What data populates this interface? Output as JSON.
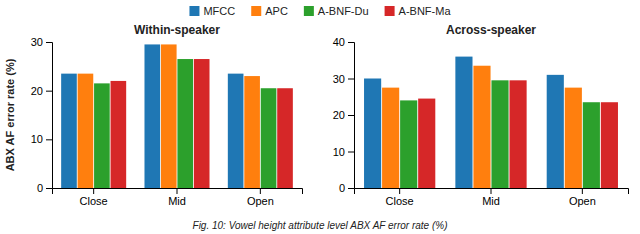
{
  "chart_data": [
    {
      "type": "bar",
      "title": "Within-speaker",
      "ylabel": "ABX AF error rate (%)",
      "caption": "Fig. 10: Vowel height attribute level ABX AF error rate (%)",
      "categories": [
        "Close",
        "Mid",
        "Open"
      ],
      "series": [
        {
          "name": "MFCC",
          "values": [
            23.5,
            29.5,
            23.5
          ]
        },
        {
          "name": "APC",
          "values": [
            23.5,
            29.5,
            23.0
          ]
        },
        {
          "name": "A-BNF-Du",
          "values": [
            21.5,
            26.5,
            20.5
          ]
        },
        {
          "name": "A-BNF-Ma",
          "values": [
            22.0,
            26.5,
            20.5
          ]
        }
      ],
      "ylim": [
        0,
        30
      ],
      "yticks": [
        0,
        10,
        20,
        30
      ],
      "grid": false,
      "legend": "top"
    },
    {
      "type": "bar",
      "title": "Across-speaker",
      "categories": [
        "Close",
        "Mid",
        "Open"
      ],
      "series": [
        {
          "name": "MFCC",
          "values": [
            30.0,
            36.0,
            31.0
          ]
        },
        {
          "name": "APC",
          "values": [
            27.5,
            33.5,
            27.5
          ]
        },
        {
          "name": "A-BNF-Du",
          "values": [
            24.0,
            29.5,
            23.5
          ]
        },
        {
          "name": "A-BNF-Ma",
          "values": [
            24.5,
            29.5,
            23.5
          ]
        }
      ],
      "ylim": [
        0,
        40
      ],
      "yticks": [
        0,
        10,
        20,
        30,
        40
      ],
      "grid": false
    }
  ]
}
